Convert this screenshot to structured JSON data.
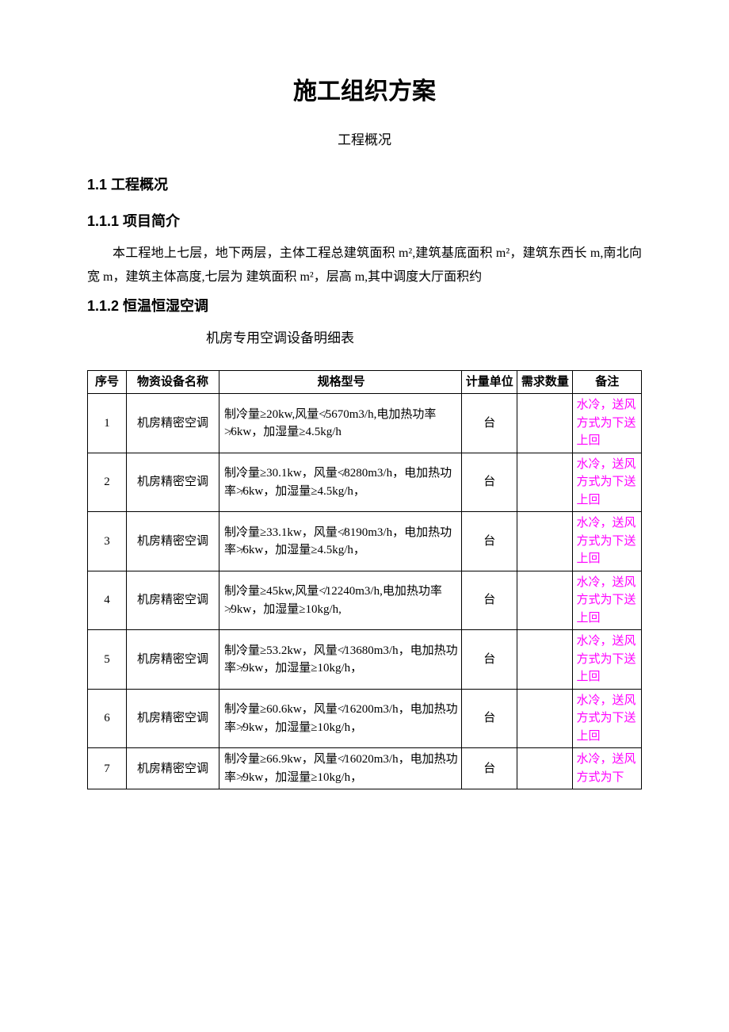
{
  "title": "施工组织方案",
  "subtitle": "工程概况",
  "h2_1": "1.1  工程概况",
  "h3_1": "1.1.1  项目简介",
  "para1": "本工程地上七层，地下两层，主体工程总建筑面积 m²,建筑基底面积 m²，建筑东西长 m,南北向宽 m，建筑主体高度,七层为      建筑面积 m²，层高 m,其中调度大厅面积约",
  "h3_2": "1.1.2 恒温恒湿空调",
  "table_caption": "机房专用空调设备明细表",
  "colors": {
    "text": "#000000",
    "note_text": "#ff00ff",
    "border": "#000000",
    "background": "#ffffff"
  },
  "table": {
    "headers": {
      "seq": "序号",
      "name": "物资设备名称",
      "spec": "规格型号",
      "unit": "计量单位",
      "qty": "需求数量",
      "note": "备注"
    },
    "rows": [
      {
        "seq": "1",
        "name": "机房精密空调",
        "spec": "制冷量≥20kw,风量≮5670m3/h,电加热功率≯6kw，加湿量≥4.5kg/h",
        "unit": "台",
        "qty": "",
        "note": "水冷，送风方式为下送上回"
      },
      {
        "seq": "2",
        "name": "机房精密空调",
        "spec": "制冷量≥30.1kw，风量≮8280m3/h，电加热功率≯6kw，加湿量≥4.5kg/h，",
        "unit": "台",
        "qty": "",
        "note": "水冷，送风方式为下送上回"
      },
      {
        "seq": "3",
        "name": "机房精密空调",
        "spec": "制冷量≥33.1kw，风量≮8190m3/h，电加热功率≯6kw，加湿量≥4.5kg/h，",
        "unit": "台",
        "qty": "",
        "note": "水冷，送风方式为下送上回"
      },
      {
        "seq": "4",
        "name": "机房精密空调",
        "spec": "制冷量≥45kw,风量≮12240m3/h,电加热功率≯9kw，加湿量≥10kg/h,",
        "unit": "台",
        "qty": "",
        "note": "水冷，送风方式为下送上回"
      },
      {
        "seq": "5",
        "name": "机房精密空调",
        "spec": "制冷量≥53.2kw，风量≮13680m3/h，电加热功率≯9kw，加湿量≥10kg/h，",
        "unit": "台",
        "qty": "",
        "note": "水冷，送风方式为下送上回"
      },
      {
        "seq": "6",
        "name": "机房精密空调",
        "spec": "制冷量≥60.6kw，风量≮16200m3/h，电加热功率≯9kw，加湿量≥10kg/h，",
        "unit": "台",
        "qty": "",
        "note": "水冷，送风方式为下送上回"
      },
      {
        "seq": "7",
        "name": "机房精密空调",
        "spec": "制冷量≥66.9kw，风量≮16020m3/h，电加热功率≯9kw，加湿量≥10kg/h，",
        "unit": "台",
        "qty": "",
        "note": "水冷，送风方式为下"
      }
    ]
  }
}
